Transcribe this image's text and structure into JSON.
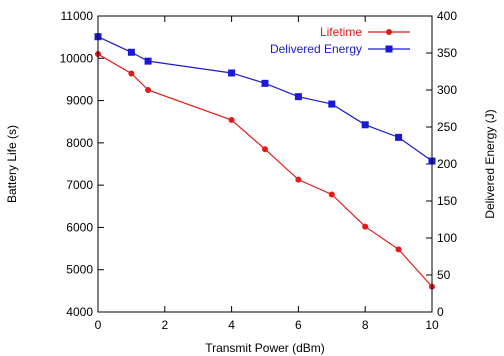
{
  "chart_data": {
    "type": "line",
    "xlabel": "Transmit Power (dBm)",
    "ylabel": "Battery Life (s)",
    "y2label": "Delivered Energy (J)",
    "xlim": [
      0,
      10
    ],
    "ylim": [
      4000,
      11000
    ],
    "y2lim": [
      0,
      400
    ],
    "xticks": [
      0,
      2,
      4,
      6,
      8,
      10
    ],
    "yticks": [
      4000,
      5000,
      6000,
      7000,
      8000,
      9000,
      10000,
      11000
    ],
    "y2ticks": [
      0,
      50,
      100,
      150,
      200,
      250,
      300,
      350,
      400
    ],
    "grid": false,
    "legend_position": "top-right",
    "series": [
      {
        "name": "Lifetime",
        "axis": "left",
        "color": "#e41a1a",
        "marker": "circle",
        "x": [
          0,
          1,
          1.5,
          4,
          5,
          6,
          7,
          8,
          9,
          10
        ],
        "values": [
          10100,
          9640,
          9250,
          8540,
          7850,
          7130,
          6780,
          6020,
          5480,
          4600
        ]
      },
      {
        "name": "Delivered Energy",
        "axis": "right",
        "color": "#1a1ad6",
        "marker": "square",
        "x": [
          0,
          1,
          1.5,
          4,
          5,
          6,
          7,
          8,
          9,
          10
        ],
        "values": [
          372,
          351,
          339,
          323,
          309,
          291,
          281,
          253,
          236,
          204
        ]
      }
    ]
  }
}
